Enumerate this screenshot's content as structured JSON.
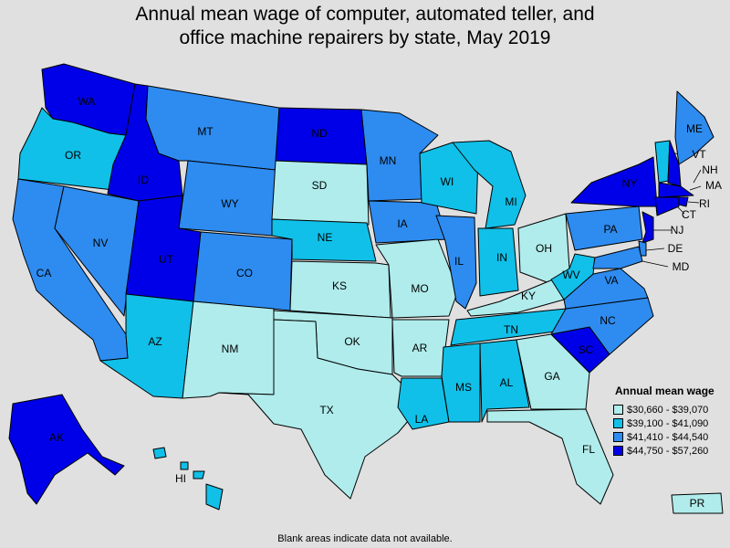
{
  "title": {
    "line1": "Annual mean wage of computer, automated teller, and",
    "line2": "office machine repairers by state, May 2019"
  },
  "legend": {
    "title": "Annual mean wage",
    "ranges": [
      {
        "label": "$30,660 - $39,070",
        "color": "#b0ecec"
      },
      {
        "label": "$39,100 - $41,090",
        "color": "#10c0e8"
      },
      {
        "label": "$41,410 - $44,540",
        "color": "#2e8cf0"
      },
      {
        "label": "$44,750 - $57,260",
        "color": "#0000e8"
      }
    ]
  },
  "footnote": "Blank areas indicate data not available.",
  "states": {
    "WA": 4,
    "OR": 2,
    "CA": 3,
    "NV": 3,
    "ID": 4,
    "MT": 3,
    "WY": 3,
    "UT": 4,
    "AZ": 2,
    "CO": 3,
    "NM": 1,
    "ND": 4,
    "SD": 1,
    "NE": 2,
    "KS": 1,
    "OK": 1,
    "TX": 1,
    "MN": 3,
    "IA": 3,
    "MO": 1,
    "AR": 1,
    "LA": 2,
    "WI": 2,
    "IL": 3,
    "MI": 2,
    "IN": 2,
    "OH": 1,
    "KY": 1,
    "TN": 2,
    "MS": 2,
    "AL": 2,
    "GA": 1,
    "FL": 1,
    "SC": 4,
    "NC": 3,
    "VA": 3,
    "WV": 2,
    "PA": 3,
    "NY": 4,
    "ME": 3,
    "VT": 2,
    "NH": 4,
    "MA": 4,
    "RI": 4,
    "CT": 4,
    "NJ": 4,
    "DE": 3,
    "MD": 3,
    "AK": 4,
    "HI": 2,
    "PR": 1
  }
}
